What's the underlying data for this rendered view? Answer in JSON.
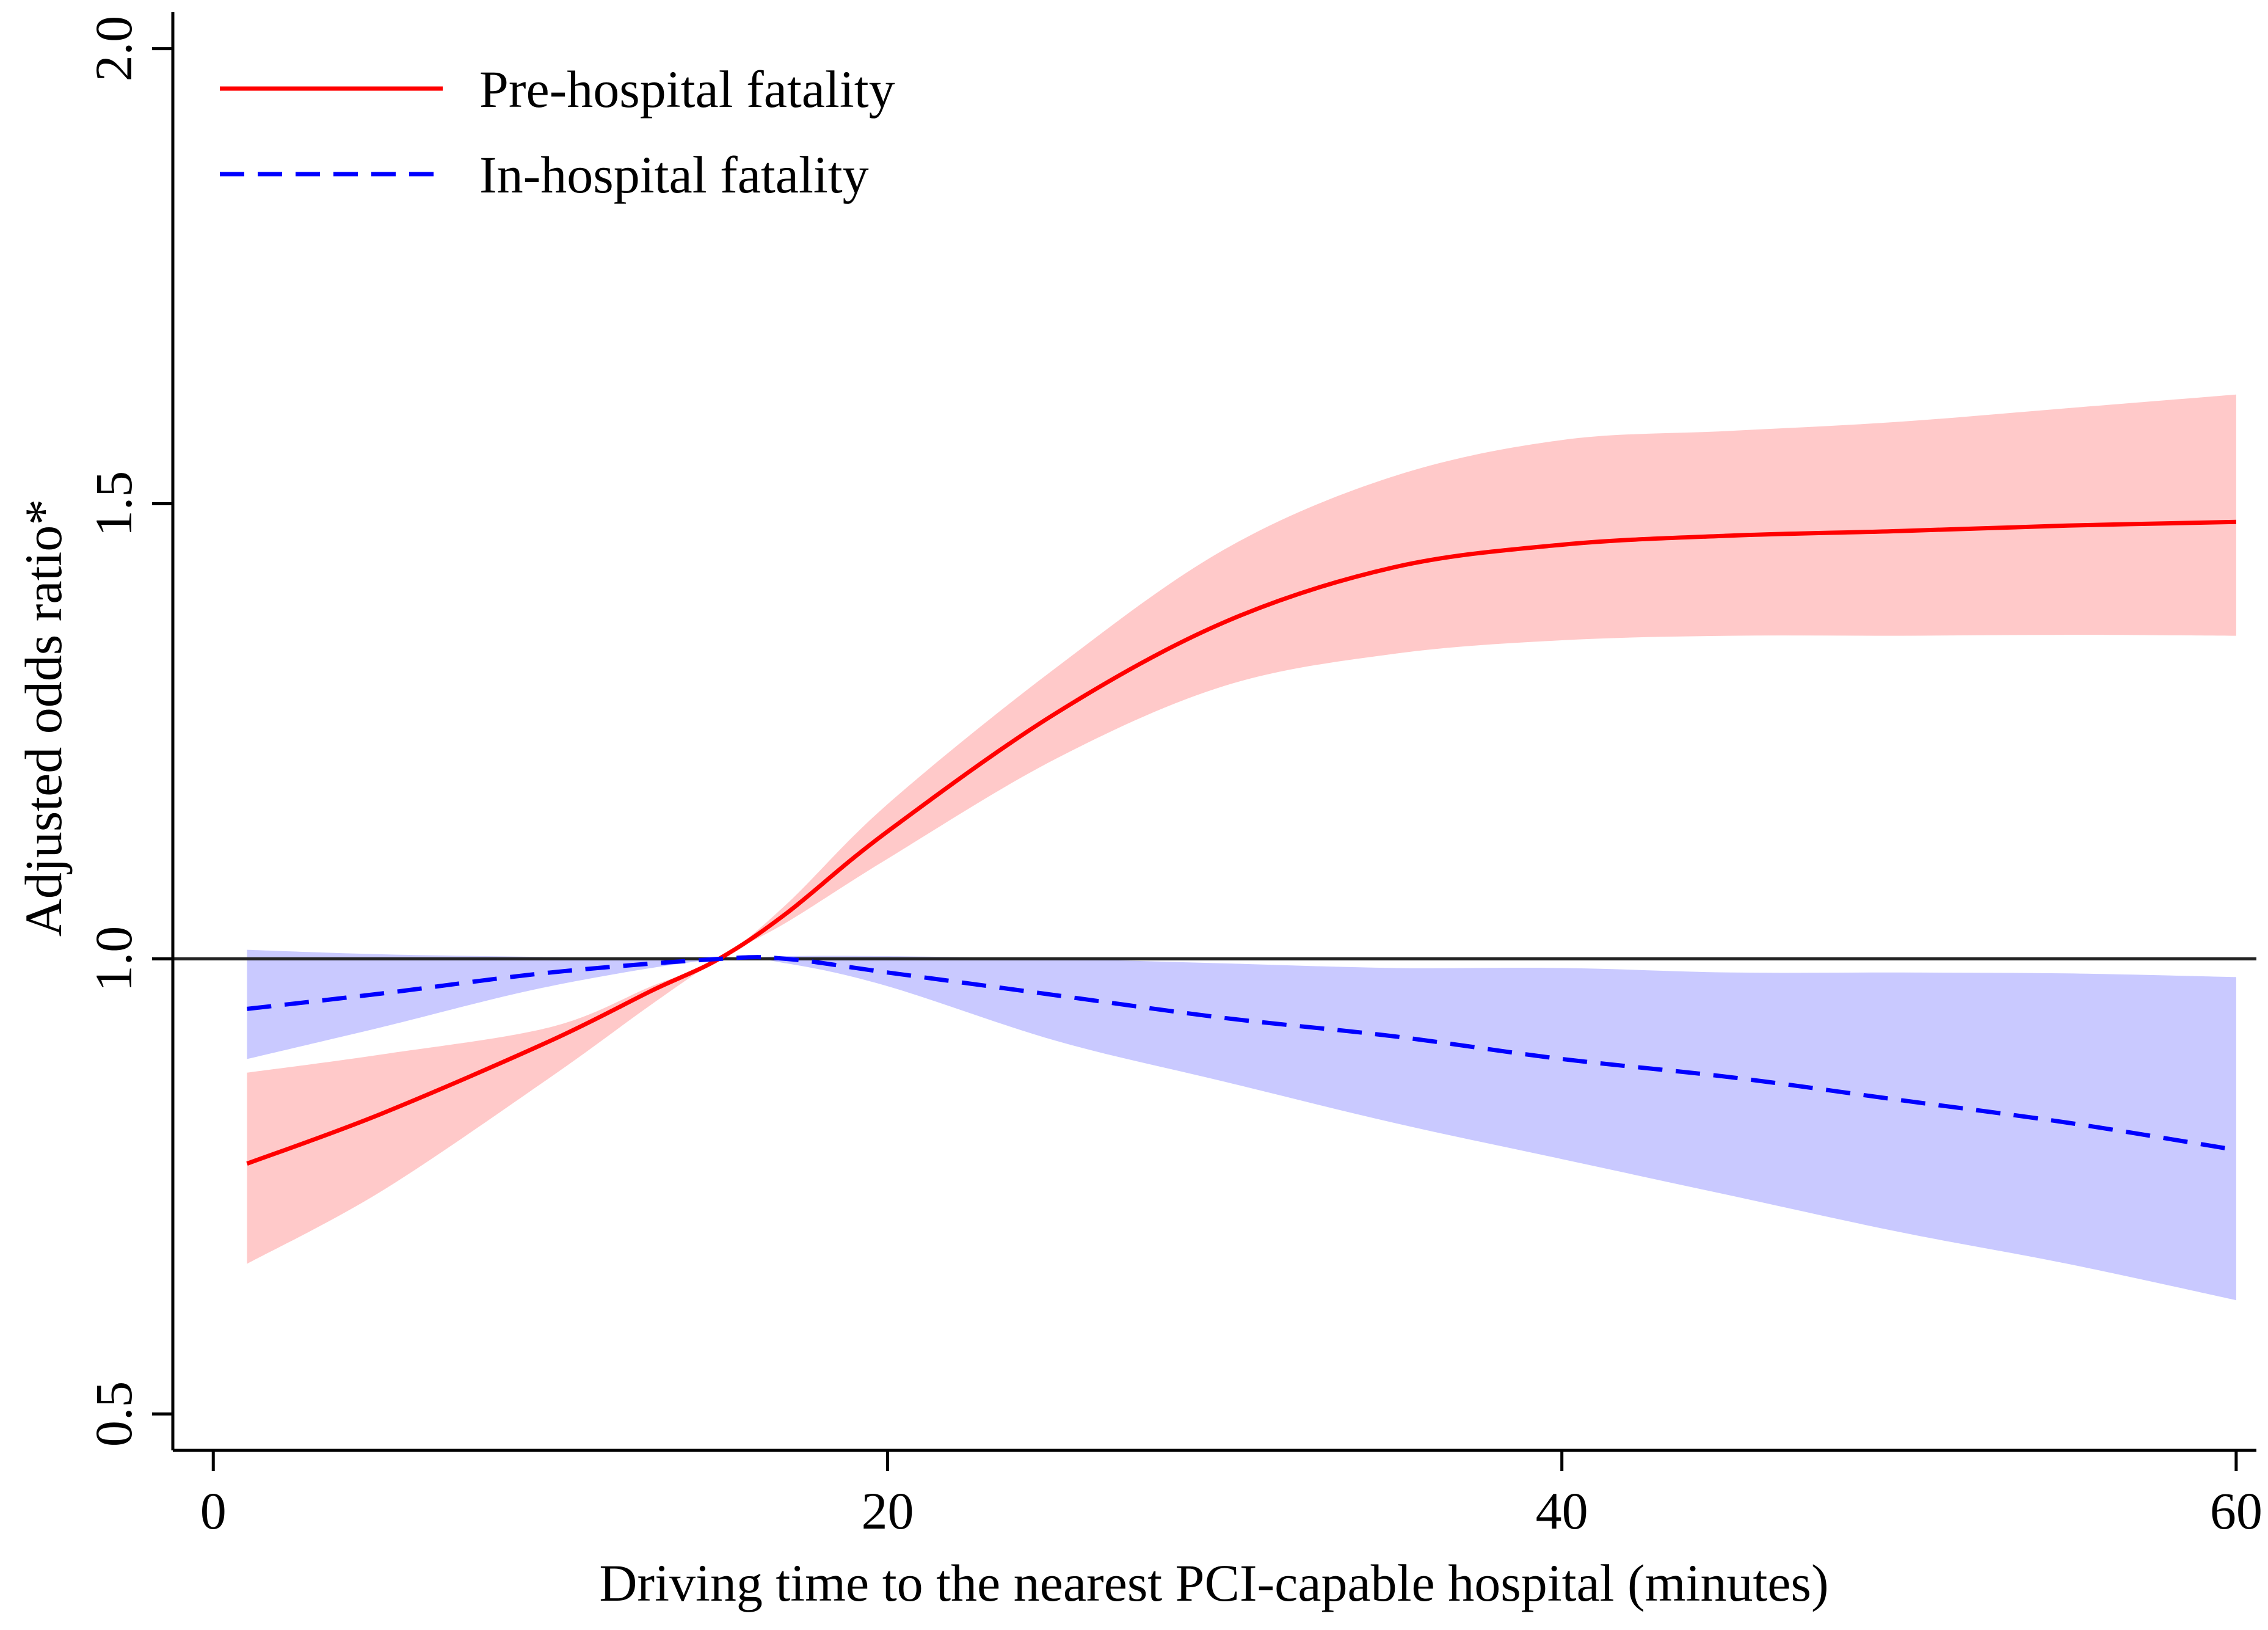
{
  "chart_data": {
    "type": "line",
    "title": "",
    "xlabel": "Driving time to the nearest PCI-capable hospital (minutes)",
    "ylabel": "Adjusted odds ratio*",
    "xlim": [
      -1.2,
      60.6
    ],
    "ylim": [
      0.46,
      2.04
    ],
    "xticks": [
      0,
      20,
      40,
      60
    ],
    "xtick_labels": [
      "0",
      "20",
      "40",
      "60"
    ],
    "yticks": [
      0.5,
      1.0,
      1.5,
      2.0
    ],
    "ytick_labels": [
      "0.5",
      "1.0",
      "1.5",
      "2.0"
    ],
    "reference_line": 1.0,
    "legend": {
      "position": "top-left"
    },
    "series": [
      {
        "name": "Pre-hospital fatality",
        "color": "#ff0000",
        "band_color": "#ffbfbf",
        "style": "solid",
        "x": [
          1,
          5,
          10,
          13,
          15,
          17,
          20,
          25,
          30,
          35,
          40,
          45,
          50,
          55,
          60
        ],
        "y": [
          0.775,
          0.83,
          0.91,
          0.965,
          1.0,
          1.05,
          1.14,
          1.27,
          1.37,
          1.43,
          1.455,
          1.465,
          1.47,
          1.476,
          1.48
        ],
        "lower": [
          0.665,
          0.745,
          0.87,
          0.95,
          1.0,
          1.04,
          1.11,
          1.22,
          1.3,
          1.335,
          1.35,
          1.355,
          1.355,
          1.356,
          1.355
        ],
        "upper": [
          0.875,
          0.895,
          0.925,
          0.97,
          1.0,
          1.06,
          1.17,
          1.32,
          1.45,
          1.53,
          1.57,
          1.58,
          1.59,
          1.605,
          1.62
        ]
      },
      {
        "name": "In-hospital fatality",
        "color": "#0000ff",
        "band_color": "#c0c0ff",
        "style": "dashed",
        "x": [
          1,
          5,
          10,
          15,
          17,
          20,
          25,
          30,
          35,
          40,
          45,
          50,
          55,
          60
        ],
        "y": [
          0.945,
          0.962,
          0.985,
          1.0,
          1.0,
          0.985,
          0.96,
          0.935,
          0.915,
          0.89,
          0.87,
          0.845,
          0.82,
          0.79
        ],
        "lower": [
          0.89,
          0.925,
          0.97,
          1.0,
          0.995,
          0.97,
          0.91,
          0.865,
          0.82,
          0.78,
          0.74,
          0.7,
          0.665,
          0.625
        ],
        "upper": [
          1.01,
          1.005,
          1.002,
          1.0,
          1.003,
          1.003,
          1.0,
          0.995,
          0.99,
          0.99,
          0.985,
          0.985,
          0.984,
          0.98
        ]
      }
    ]
  }
}
